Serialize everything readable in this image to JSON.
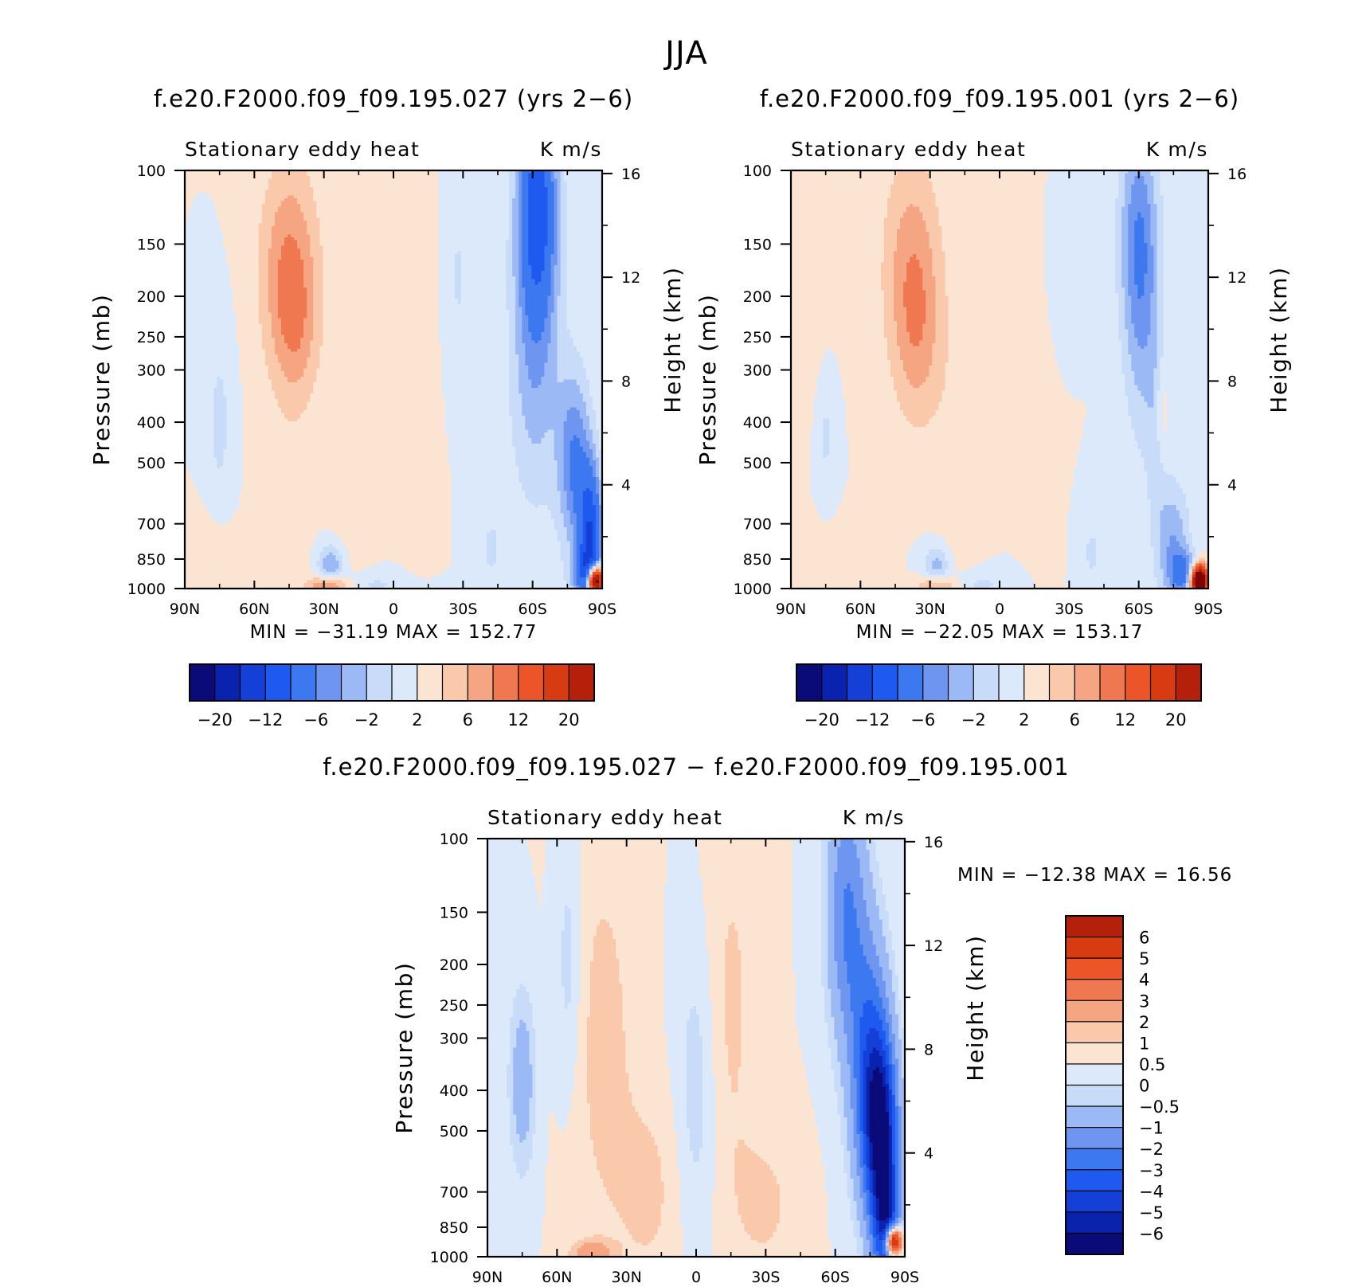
{
  "page_title": "JJA",
  "colors": {
    "palette": [
      "#0a0a78",
      "#0a23af",
      "#1440d7",
      "#1e5af0",
      "#3c78f0",
      "#6e96f0",
      "#9bb9f5",
      "#c8dcfa",
      "#dce9fb",
      "#fbe4d2",
      "#fac8aa",
      "#f5a582",
      "#f07850",
      "#eb5528",
      "#d83a12",
      "#b4200a",
      "#7e0505"
    ]
  },
  "chart_data": [
    {
      "id": "left",
      "type": "heatmap",
      "subtitle": "f.e20.F2000.f09_f09.195.027 (yrs 2−6)",
      "variable_label": "Stationary eddy heat",
      "units_label": "K m/s",
      "min_max_label": "MIN = −31.19   MAX = 152.77",
      "min_value": -31.19,
      "max_value": 152.77,
      "xlabel": "",
      "ylabel": "Pressure (mb)",
      "ylabel_right": "Height (km)",
      "x_ticks": [
        "90N",
        "60N",
        "30N",
        "0",
        "30S",
        "60S",
        "90S"
      ],
      "x_tick_values": [
        90,
        60,
        30,
        0,
        -30,
        -60,
        -90
      ],
      "y_ticks": [
        "100",
        "150",
        "200",
        "250",
        "300",
        "400",
        "500",
        "700",
        "850",
        "1000"
      ],
      "y_tick_values": [
        100,
        150,
        200,
        250,
        300,
        400,
        500,
        700,
        850,
        1000
      ],
      "y_right_ticks": [
        "16",
        "12",
        "8",
        "4"
      ],
      "y_right_tick_values": [
        16,
        12,
        8,
        4
      ],
      "ylim": [
        1000,
        100
      ],
      "xlim": [
        90,
        -90
      ],
      "levels": [
        -24,
        -20,
        -16,
        -12,
        -8,
        -6,
        -4,
        -2,
        0,
        2,
        4,
        6,
        8,
        12,
        16,
        20,
        24
      ],
      "colorbar_labels": [
        "−20",
        "−12",
        "−6",
        "−2",
        "2",
        "6",
        "12",
        "20"
      ],
      "colorbar_label_levels": [
        -20,
        -12,
        -6,
        -2,
        2,
        6,
        12,
        20
      ],
      "features": [
        {
          "lat": 45,
          "p": 170,
          "sl": 9,
          "sp": 0.42,
          "a": 6
        },
        {
          "lat": 42,
          "p": 250,
          "sl": 7,
          "sp": 0.3,
          "a": 3
        },
        {
          "lat": -62,
          "p": 120,
          "sl": 6,
          "sp": 0.45,
          "a": -14
        },
        {
          "lat": -61,
          "p": 300,
          "sl": 8,
          "sp": 0.55,
          "a": -5
        },
        {
          "lat": -78,
          "p": 500,
          "sl": 5,
          "sp": 0.35,
          "a": -8
        },
        {
          "lat": -85,
          "p": 800,
          "sl": 3.5,
          "sp": 0.3,
          "a": -16
        },
        {
          "lat": -82,
          "p": 920,
          "sl": 4,
          "sp": 0.08,
          "a": -6
        },
        {
          "lat": -87,
          "p": 960,
          "sl": 2.5,
          "sp": 0.06,
          "a": 34
        },
        {
          "lat": -10,
          "p": 300,
          "sl": 5,
          "sp": 0.7,
          "a": 1.4
        },
        {
          "lat": 18,
          "p": 500,
          "sl": 6,
          "sp": 0.6,
          "a": 1.2
        },
        {
          "lat": 75,
          "p": 400,
          "sl": 4,
          "sp": 0.35,
          "a": -2.6
        },
        {
          "lat": -28,
          "p": 180,
          "sl": 4,
          "sp": 0.35,
          "a": -2.2
        },
        {
          "lat": -42,
          "p": 800,
          "sl": 5,
          "sp": 0.2,
          "a": -2.2
        },
        {
          "lat": 10,
          "p": 980,
          "sl": 12,
          "sp": 0.05,
          "a": -2.4
        },
        {
          "lat": 28,
          "p": 985,
          "sl": 6,
          "sp": 0.04,
          "a": 8
        },
        {
          "lat": 27,
          "p": 880,
          "sl": 4,
          "sp": 0.08,
          "a": -6
        },
        {
          "lat": 80,
          "p": 850,
          "sl": 10,
          "sp": 0.15,
          "a": 1.8
        },
        {
          "lat": 58,
          "p": 600,
          "sl": 3,
          "sp": 0.3,
          "a": 1.8
        },
        {
          "lat": 45,
          "p": 650,
          "sl": 6,
          "sp": 0.3,
          "a": 1.5
        }
      ]
    },
    {
      "id": "right",
      "type": "heatmap",
      "subtitle": "f.e20.F2000.f09_f09.195.001 (yrs 2−6)",
      "variable_label": "Stationary eddy heat",
      "units_label": "K m/s",
      "min_max_label": "MIN = −22.05   MAX = 153.17",
      "min_value": -22.05,
      "max_value": 153.17,
      "xlabel": "",
      "ylabel": "Pressure (mb)",
      "ylabel_right": "Height (km)",
      "x_ticks": [
        "90N",
        "60N",
        "30N",
        "0",
        "30S",
        "60S",
        "90S"
      ],
      "x_tick_values": [
        90,
        60,
        30,
        0,
        -30,
        -60,
        -90
      ],
      "y_ticks": [
        "100",
        "150",
        "200",
        "250",
        "300",
        "400",
        "500",
        "700",
        "850",
        "1000"
      ],
      "y_tick_values": [
        100,
        150,
        200,
        250,
        300,
        400,
        500,
        700,
        850,
        1000
      ],
      "y_right_ticks": [
        "16",
        "12",
        "8",
        "4"
      ],
      "y_right_tick_values": [
        16,
        12,
        8,
        4
      ],
      "ylim": [
        1000,
        100
      ],
      "xlim": [
        90,
        -90
      ],
      "levels": [
        -24,
        -20,
        -16,
        -12,
        -8,
        -6,
        -4,
        -2,
        0,
        2,
        4,
        6,
        8,
        12,
        16,
        20,
        24
      ],
      "colorbar_labels": [
        "−20",
        "−12",
        "−6",
        "−2",
        "2",
        "6",
        "12",
        "20"
      ],
      "colorbar_label_levels": [
        -20,
        -12,
        -6,
        -2,
        2,
        6,
        12,
        20
      ],
      "features": [
        {
          "lat": 38,
          "p": 170,
          "sl": 9,
          "sp": 0.45,
          "a": 5
        },
        {
          "lat": 35,
          "p": 260,
          "sl": 7,
          "sp": 0.35,
          "a": 3
        },
        {
          "lat": -60,
          "p": 140,
          "sl": 6,
          "sp": 0.45,
          "a": -7
        },
        {
          "lat": -62,
          "p": 260,
          "sl": 6,
          "sp": 0.5,
          "a": -3.5
        },
        {
          "lat": -75,
          "p": 800,
          "sl": 5,
          "sp": 0.25,
          "a": -6
        },
        {
          "lat": -80,
          "p": 920,
          "sl": 4,
          "sp": 0.08,
          "a": -8
        },
        {
          "lat": -86,
          "p": 960,
          "sl": 2.5,
          "sp": 0.06,
          "a": 34
        },
        {
          "lat": -68,
          "p": 450,
          "sl": 3,
          "sp": 0.4,
          "a": -2.4
        },
        {
          "lat": -70,
          "p": 380,
          "sl": 2,
          "sp": 0.2,
          "a": 3
        },
        {
          "lat": -20,
          "p": 350,
          "sl": 5,
          "sp": 0.7,
          "a": 1.4
        },
        {
          "lat": 20,
          "p": 500,
          "sl": 6,
          "sp": 0.6,
          "a": 1.3
        },
        {
          "lat": 80,
          "p": 200,
          "sl": 6,
          "sp": 0.4,
          "a": 1.6
        },
        {
          "lat": 75,
          "p": 420,
          "sl": 3,
          "sp": 0.3,
          "a": -2.4
        },
        {
          "lat": 10,
          "p": 980,
          "sl": 12,
          "sp": 0.05,
          "a": -2.4
        },
        {
          "lat": 27,
          "p": 985,
          "sl": 6,
          "sp": 0.04,
          "a": 6
        },
        {
          "lat": 27,
          "p": 880,
          "sl": 4,
          "sp": 0.08,
          "a": -5
        },
        {
          "lat": 80,
          "p": 850,
          "sl": 10,
          "sp": 0.15,
          "a": 1.8
        },
        {
          "lat": -25,
          "p": 180,
          "sl": 4,
          "sp": 0.35,
          "a": -2.2
        },
        {
          "lat": -40,
          "p": 820,
          "sl": 5,
          "sp": 0.2,
          "a": -2.2
        }
      ]
    },
    {
      "id": "diff",
      "type": "heatmap",
      "subtitle": "f.e20.F2000.f09_f09.195.027 − f.e20.F2000.f09_f09.195.001",
      "variable_label": "Stationary eddy heat",
      "units_label": "K m/s",
      "min_max_label": "MIN = −12.38   MAX =   16.56",
      "min_value": -12.38,
      "max_value": 16.56,
      "xlabel": "",
      "ylabel": "Pressure (mb)",
      "ylabel_right": "Height (km)",
      "x_ticks": [
        "90N",
        "60N",
        "30N",
        "0",
        "30S",
        "60S",
        "90S"
      ],
      "x_tick_values": [
        90,
        60,
        30,
        0,
        -30,
        -60,
        -90
      ],
      "y_ticks": [
        "100",
        "150",
        "200",
        "250",
        "300",
        "400",
        "500",
        "700",
        "850",
        "1000"
      ],
      "y_tick_values": [
        100,
        150,
        200,
        250,
        300,
        400,
        500,
        700,
        850,
        1000
      ],
      "y_right_ticks": [
        "16",
        "12",
        "8",
        "4"
      ],
      "y_right_tick_values": [
        16,
        12,
        8,
        4
      ],
      "ylim": [
        1000,
        100
      ],
      "xlim": [
        90,
        -90
      ],
      "levels": [
        -7,
        -6,
        -5,
        -4,
        -3,
        -2,
        -1,
        -0.5,
        0,
        0.5,
        1,
        2,
        3,
        4,
        5,
        6,
        7
      ],
      "colorbar_labels": [
        "6",
        "5",
        "4",
        "3",
        "2",
        "1",
        "0.5",
        "0",
        "−0.5",
        "−1",
        "−2",
        "−3",
        "−4",
        "−5",
        "−6"
      ],
      "colorbar_label_levels": [
        6,
        5,
        4,
        3,
        2,
        1,
        0.5,
        0,
        -0.5,
        -1,
        -2,
        -3,
        -4,
        -5,
        -6
      ],
      "features": [
        {
          "lat": 40,
          "p": 300,
          "sl": 10,
          "sp": 0.8,
          "a": 0.7
        },
        {
          "lat": -15,
          "p": 250,
          "sl": 8,
          "sp": 0.8,
          "a": 0.6
        },
        {
          "lat": -65,
          "p": 150,
          "sl": 6,
          "sp": 0.5,
          "a": -3
        },
        {
          "lat": -75,
          "p": 350,
          "sl": 6,
          "sp": 0.5,
          "a": -4
        },
        {
          "lat": -80,
          "p": 500,
          "sl": 5,
          "sp": 0.35,
          "a": -6
        },
        {
          "lat": -82,
          "p": 850,
          "sl": 4,
          "sp": 0.25,
          "a": -5
        },
        {
          "lat": -85,
          "p": 920,
          "sl": 2.5,
          "sp": 0.06,
          "a": 9
        },
        {
          "lat": 75,
          "p": 380,
          "sl": 4,
          "sp": 0.35,
          "a": -1.6
        },
        {
          "lat": 55,
          "p": 200,
          "sl": 4,
          "sp": 0.5,
          "a": -0.8
        },
        {
          "lat": 0,
          "p": 400,
          "sl": 6,
          "sp": 0.6,
          "a": -0.8
        },
        {
          "lat": 20,
          "p": 700,
          "sl": 10,
          "sp": 0.4,
          "a": 0.6
        },
        {
          "lat": -30,
          "p": 750,
          "sl": 10,
          "sp": 0.3,
          "a": 0.6
        },
        {
          "lat": 45,
          "p": 985,
          "sl": 6,
          "sp": 0.05,
          "a": 1.6
        }
      ]
    }
  ]
}
